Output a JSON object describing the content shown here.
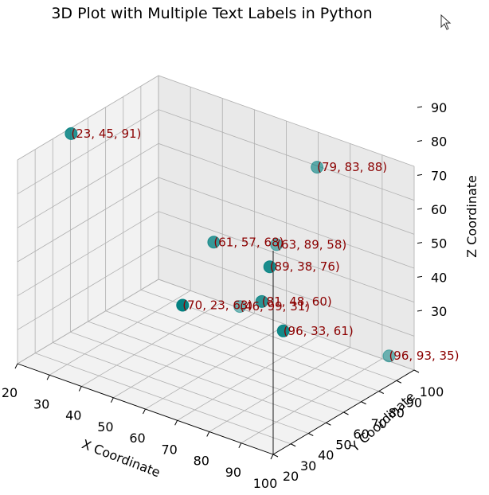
{
  "chart_data": {
    "type": "scatter",
    "title": "3D Plot with Multiple Text Labels in Python",
    "xlabel": "X Coordinate",
    "ylabel": "Y Coordinate",
    "zlabel": "Z Coordinate",
    "xlim": [
      20,
      100
    ],
    "ylim": [
      20,
      100
    ],
    "zlim": [
      30,
      90
    ],
    "xticks": [
      20,
      30,
      40,
      50,
      60,
      70,
      80,
      90,
      100
    ],
    "yticks": [
      20,
      30,
      40,
      50,
      60,
      70,
      80,
      90,
      100
    ],
    "zticks": [
      30,
      40,
      50,
      60,
      70,
      80,
      90
    ],
    "grid": true,
    "marker_color": "#008080",
    "label_color": "#8b0000",
    "points": [
      {
        "x": 23,
        "y": 45,
        "z": 91,
        "label": "(23, 45, 91)"
      },
      {
        "x": 79,
        "y": 83,
        "z": 88,
        "label": "(79, 83, 88)"
      },
      {
        "x": 63,
        "y": 89,
        "z": 58,
        "label": "(63, 89, 58)"
      },
      {
        "x": 61,
        "y": 57,
        "z": 68,
        "label": "(61, 57, 68)"
      },
      {
        "x": 46,
        "y": 99,
        "z": 31,
        "label": "(46, 99, 31)"
      },
      {
        "x": 89,
        "y": 38,
        "z": 76,
        "label": "(89, 38, 76)"
      },
      {
        "x": 81,
        "y": 48,
        "z": 60,
        "label": "(81, 48, 60)"
      },
      {
        "x": 96,
        "y": 93,
        "z": 35,
        "label": "(96, 93, 35)"
      },
      {
        "x": 70,
        "y": 23,
        "z": 63,
        "label": "(70, 23, 63)"
      },
      {
        "x": 96,
        "y": 33,
        "z": 61,
        "label": "(96, 33, 61)"
      }
    ]
  },
  "cursor_icon": "mouse-pointer-icon"
}
